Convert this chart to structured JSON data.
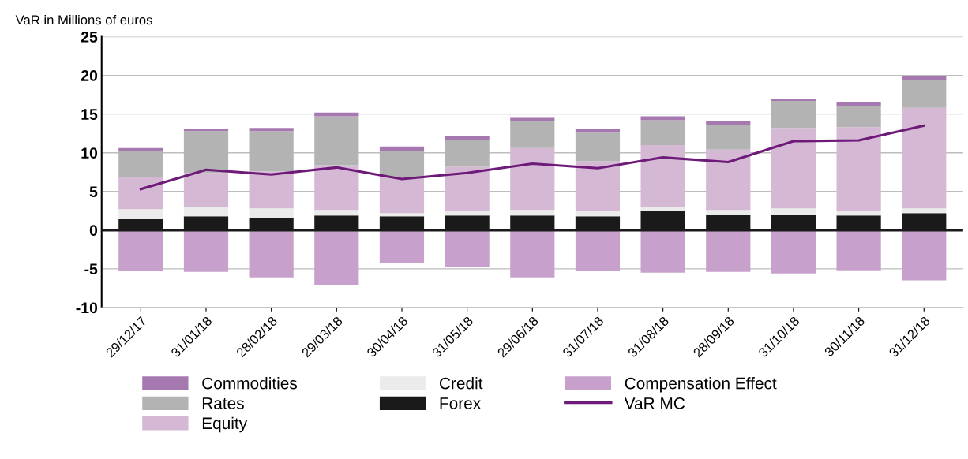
{
  "chart_data": {
    "type": "bar",
    "stacked": true,
    "ylabel": "VaR in Millions of euros",
    "categories": [
      "29/12/17",
      "31/01/18",
      "28/02/18",
      "29/03/18",
      "30/04/18",
      "31/05/18",
      "29/06/18",
      "31/07/18",
      "31/08/18",
      "28/09/18",
      "31/10/18",
      "30/11/18",
      "31/12/18"
    ],
    "series": [
      {
        "name": "Forex",
        "color": "#1a1a1a",
        "values": [
          1.4,
          1.8,
          1.5,
          1.9,
          1.8,
          1.9,
          1.9,
          1.8,
          2.5,
          2.0,
          2.0,
          1.9,
          2.2
        ]
      },
      {
        "name": "Credit",
        "color": "#ebebeb",
        "values": [
          1.3,
          1.2,
          1.3,
          0.7,
          0.4,
          0.6,
          0.7,
          0.7,
          0.5,
          0.6,
          0.8,
          0.6,
          0.6
        ]
      },
      {
        "name": "Equity",
        "color": "#d4b8d4",
        "values": [
          4.1,
          4.4,
          4.8,
          5.8,
          4.6,
          5.7,
          8.0,
          6.4,
          8.0,
          7.8,
          10.4,
          10.8,
          13.0
        ]
      },
      {
        "name": "Rates",
        "color": "#b3b3b3",
        "values": [
          3.4,
          5.4,
          5.2,
          6.3,
          3.4,
          3.4,
          3.5,
          3.7,
          3.2,
          3.2,
          3.5,
          2.8,
          3.6
        ]
      },
      {
        "name": "Commodities",
        "color": "#a678b0",
        "values": [
          0.4,
          0.3,
          0.4,
          0.5,
          0.6,
          0.6,
          0.5,
          0.5,
          0.5,
          0.5,
          0.3,
          0.5,
          0.5
        ]
      },
      {
        "name": "Compensation Effect",
        "color": "#c8a0cc",
        "values": [
          -5.3,
          -5.4,
          -6.1,
          -7.1,
          -4.3,
          -4.8,
          -6.1,
          -5.3,
          -5.5,
          -5.4,
          -5.6,
          -5.2,
          -6.5
        ]
      },
      {
        "name": "VaR MC",
        "type": "line",
        "color": "#6e1a78",
        "values": [
          5.3,
          7.8,
          7.2,
          8.1,
          6.6,
          7.4,
          8.6,
          8.0,
          9.4,
          8.8,
          11.5,
          11.6,
          13.5
        ]
      }
    ],
    "ylim": [
      -10,
      25
    ],
    "yticks": [
      -10,
      -5,
      0,
      5,
      10,
      15,
      20,
      25
    ],
    "grid": "y",
    "legend": "bottom",
    "ref_lines": [
      {
        "axis": "y",
        "value": 0,
        "color": "#1a1a1a"
      }
    ]
  }
}
